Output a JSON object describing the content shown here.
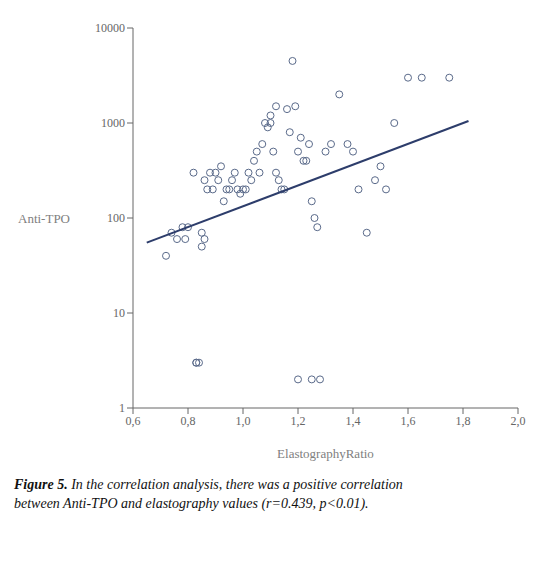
{
  "chart_data": {
    "type": "scatter",
    "xlabel": "ElastographyRatio",
    "ylabel": "Anti-TPO",
    "xlim": [
      0.6,
      2.0
    ],
    "ylim": [
      1,
      10000
    ],
    "xticks": [
      {
        "value": 0.6,
        "label": "0,6"
      },
      {
        "value": 0.8,
        "label": "0,8"
      },
      {
        "value": 1.0,
        "label": "1,0"
      },
      {
        "value": 1.2,
        "label": "1,2"
      },
      {
        "value": 1.4,
        "label": "1,4"
      },
      {
        "value": 1.6,
        "label": "1,6"
      },
      {
        "value": 1.8,
        "label": "1,8"
      },
      {
        "value": 2.0,
        "label": "2,0"
      }
    ],
    "yticks": [
      1,
      10,
      100,
      1000,
      10000
    ],
    "log": "y",
    "grid": false,
    "series": [
      {
        "type": "scatter",
        "marker": "open_circle",
        "color": "#5a6a8a",
        "x": [
          0.72,
          0.74,
          0.76,
          0.78,
          0.79,
          0.8,
          0.82,
          0.83,
          0.85,
          0.86,
          0.87,
          0.88,
          0.89,
          0.9,
          0.91,
          0.92,
          0.93,
          0.94,
          0.95,
          0.96,
          0.97,
          0.98,
          0.99,
          1.0,
          1.01,
          1.02,
          1.03,
          1.04,
          1.05,
          1.06,
          1.07,
          1.08,
          1.09,
          1.1,
          1.1,
          1.11,
          1.12,
          1.12,
          1.13,
          1.14,
          1.15,
          1.16,
          1.17,
          1.18,
          1.19,
          1.2,
          1.21,
          1.22,
          1.23,
          1.24,
          1.25,
          1.26,
          1.27,
          1.28,
          1.3,
          1.32,
          1.35,
          1.38,
          1.4,
          1.42,
          1.45,
          1.48,
          1.5,
          1.52,
          1.55,
          1.6,
          1.65,
          1.75,
          0.83,
          0.84,
          1.2,
          1.25,
          0.85,
          0.86
        ],
        "values": [
          40,
          70,
          60,
          80,
          60,
          80,
          300,
          3,
          70,
          250,
          200,
          300,
          200,
          300,
          250,
          350,
          150,
          200,
          200,
          250,
          300,
          200,
          180,
          200,
          200,
          300,
          250,
          400,
          500,
          300,
          600,
          1000,
          900,
          1000,
          1200,
          500,
          1500,
          300,
          250,
          200,
          200,
          1400,
          800,
          4500,
          1500,
          500,
          700,
          400,
          400,
          600,
          150,
          100,
          80,
          2,
          500,
          600,
          2000,
          600,
          500,
          200,
          70,
          250,
          350,
          200,
          1000,
          3000,
          3000,
          3000,
          3,
          3,
          2,
          2,
          50,
          60
        ]
      },
      {
        "type": "line",
        "color": "#2d3d6b",
        "x": [
          0.65,
          1.82
        ],
        "values": [
          55,
          1050
        ]
      }
    ],
    "annotations": [
      "Figure 5.",
      " In the correlation analysis, there was a positive correlation\nbetween Anti-TPO and elastography values (r=0.439, p<0.01)."
    ]
  }
}
